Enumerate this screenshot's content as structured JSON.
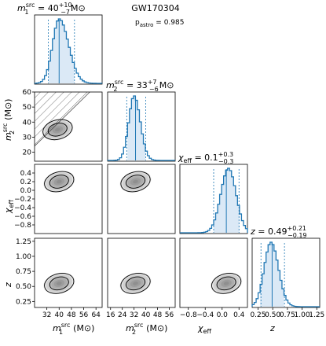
{
  "event": "GW170304",
  "p_astro": {
    "label": "p",
    "sub": "astro",
    "value": "0.985"
  },
  "chart_data": [
    {
      "type": "histogram",
      "param": "m1",
      "title": {
        "sym": "m",
        "sub": "1",
        "sup": "src",
        "median": "40",
        "plus": "+10",
        "minus": "−7",
        "unit": "M⊙"
      },
      "xlim": [
        24,
        68
      ],
      "peak": 40,
      "median": 40,
      "ci": [
        33,
        50
      ]
    },
    {
      "type": "histogram",
      "param": "m2",
      "title": {
        "sym": "m",
        "sub": "2",
        "sup": "src",
        "median": "33",
        "plus": "+7",
        "minus": "−6",
        "unit": "M⊙"
      },
      "xlim": [
        14,
        60
      ],
      "peak": 32,
      "median": 33,
      "ci": [
        27,
        40
      ]
    },
    {
      "type": "histogram",
      "param": "chi_eff",
      "title": {
        "sym": "χ",
        "sub": "eff",
        "sup": "",
        "median": "0.1",
        "plus": "+0.3",
        "minus": "−0.3",
        "unit": ""
      },
      "xlim": [
        -1,
        0.6
      ],
      "peak": 0.15,
      "median": 0.1,
      "ci": [
        -0.2,
        0.4
      ]
    },
    {
      "type": "histogram",
      "param": "z",
      "title": {
        "sym": "z",
        "sub": "",
        "sup": "",
        "median": "0.49",
        "plus": "+0.21",
        "minus": "−0.19",
        "unit": ""
      },
      "xlim": [
        0.15,
        1.3
      ],
      "peak": 0.47,
      "median": 0.49,
      "ci": [
        0.3,
        0.7
      ]
    },
    {
      "type": "contour",
      "x": "m1",
      "y": "m2",
      "center": [
        39,
        35
      ],
      "note": "hatched region m2 > m1 excluded"
    },
    {
      "type": "contour",
      "x": "m1",
      "y": "chi_eff",
      "center": [
        40,
        0.2
      ]
    },
    {
      "type": "contour",
      "x": "m2",
      "y": "chi_eff",
      "center": [
        33,
        0.2
      ]
    },
    {
      "type": "contour",
      "x": "m1",
      "y": "z",
      "center": [
        40,
        0.55
      ]
    },
    {
      "type": "contour",
      "x": "m2",
      "y": "z",
      "center": [
        33,
        0.55
      ]
    },
    {
      "type": "contour",
      "x": "chi_eff",
      "y": "z",
      "center": [
        0.1,
        0.55
      ]
    }
  ],
  "axes": {
    "m1": {
      "range": [
        24,
        68
      ],
      "ticks": [
        32,
        40,
        48,
        56,
        64
      ],
      "ticklabels": [
        "32",
        "40",
        "48",
        "56",
        "64"
      ],
      "label": {
        "sym": "m",
        "sub": "1",
        "sup": "src",
        "unit": "(M⊙)"
      }
    },
    "m2": {
      "range": [
        14,
        60
      ],
      "ticks": [
        16,
        24,
        32,
        40,
        48,
        56
      ],
      "ticklabels": [
        "16",
        "24",
        "32",
        "40",
        "48",
        "56"
      ],
      "yticks": [
        20,
        30,
        40,
        50,
        60
      ],
      "yticklabels": [
        "20",
        "30",
        "40",
        "50",
        "60"
      ],
      "label": {
        "sym": "m",
        "sub": "2",
        "sup": "src",
        "unit": "(M⊙)"
      }
    },
    "chi_eff": {
      "range": [
        -1,
        0.6
      ],
      "ticks": [
        -0.8,
        -0.4,
        0.0,
        0.4
      ],
      "ticklabels": [
        "−0.8",
        "−0.4",
        "0.0",
        "0.4"
      ],
      "yticks": [
        -0.8,
        -0.6,
        -0.4,
        -0.2,
        0.0,
        0.2,
        0.4
      ],
      "yticklabels": [
        "−0.8",
        "−0.6",
        "−0.4",
        "−0.2",
        "0.0",
        "0.2",
        "0.4"
      ],
      "label": {
        "sym": "χ",
        "sub": "eff",
        "sup": "",
        "unit": ""
      }
    },
    "z": {
      "range": [
        0.15,
        1.3
      ],
      "ticks": [
        0.25,
        0.5,
        0.75,
        1.0,
        1.25
      ],
      "ticklabels": [
        "0.25",
        "0.50",
        "0.75",
        "1.00",
        "1.25"
      ],
      "yticks": [
        0.25,
        0.5,
        0.75,
        1.0,
        1.25
      ],
      "yticklabels": [
        "0.25",
        "0.50",
        "0.75",
        "1.00",
        "1.25"
      ],
      "label": {
        "sym": "z",
        "sub": "",
        "sup": "",
        "unit": ""
      }
    }
  },
  "colors": {
    "hist_line": "#1f77b4",
    "hist_fill": "#dbe9f6",
    "contour": "#000000",
    "density": "#333333"
  }
}
